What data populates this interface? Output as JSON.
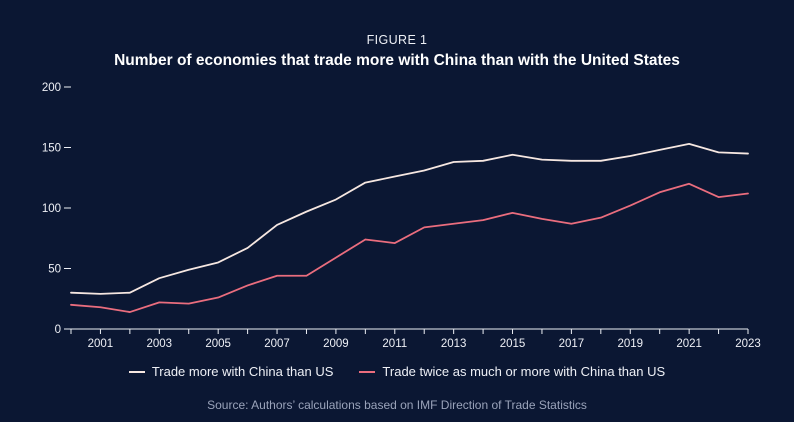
{
  "figure": {
    "label": "FIGURE 1",
    "title": "Number of economies that trade more with China than with the United States",
    "source": "Source: Authors’ calculations based on IMF Direction of Trade Statistics"
  },
  "colors": {
    "background": "#0b1733",
    "series_1": "#f6e7e1",
    "series_2": "#ea6d7e",
    "axis": "#eef0f6"
  },
  "chart_data": {
    "type": "line",
    "title": "Number of economies that trade more with China than with the United States",
    "xlabel": "",
    "ylabel": "",
    "x": [
      2000,
      2001,
      2002,
      2003,
      2004,
      2005,
      2006,
      2007,
      2008,
      2009,
      2010,
      2011,
      2012,
      2013,
      2014,
      2015,
      2016,
      2017,
      2018,
      2019,
      2020,
      2021,
      2022,
      2023
    ],
    "xticks": [
      "2001",
      "2003",
      "2005",
      "2007",
      "2009",
      "2011",
      "2013",
      "2015",
      "2017",
      "2019",
      "2021",
      "2023"
    ],
    "yticks": [
      "0",
      "50",
      "100",
      "150",
      "200"
    ],
    "xlim": [
      2000,
      2023
    ],
    "ylim": [
      0,
      200
    ],
    "grid": false,
    "legend_position": "bottom",
    "series": [
      {
        "name": "Trade more with China than US",
        "values": [
          30,
          29,
          30,
          42,
          49,
          55,
          67,
          86,
          97,
          107,
          121,
          126,
          131,
          138,
          139,
          144,
          140,
          139,
          139,
          143,
          148,
          153,
          146,
          145
        ]
      },
      {
        "name": "Trade twice as much or more with China than US",
        "values": [
          20,
          18,
          14,
          22,
          21,
          26,
          36,
          44,
          44,
          59,
          74,
          71,
          84,
          87,
          90,
          96,
          91,
          87,
          92,
          102,
          113,
          120,
          109,
          112
        ]
      }
    ]
  }
}
